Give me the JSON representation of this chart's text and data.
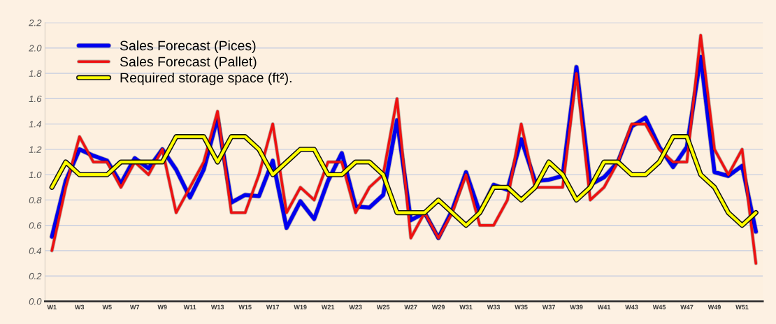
{
  "chart_data": {
    "type": "line",
    "categories": [
      "W1",
      null,
      "W3",
      null,
      "W5",
      null,
      "W7",
      null,
      "W9",
      null,
      "W11",
      null,
      "W13",
      null,
      "W15",
      null,
      "W17",
      null,
      "W19",
      null,
      "W21",
      null,
      "W23",
      null,
      "W25",
      null,
      "W27",
      null,
      "W29",
      null,
      "W31",
      null,
      "W33",
      null,
      "W35",
      null,
      "W37",
      null,
      "W39",
      null,
      "W41",
      null,
      "W43",
      null,
      "W45",
      null,
      "W47",
      null,
      "W49",
      null,
      "W51",
      null
    ],
    "series": [
      {
        "name": "Sales Forecast (Pices)",
        "color": "#0000ee",
        "values": [
          0.51,
          0.95,
          1.2,
          1.15,
          1.11,
          0.93,
          1.13,
          1.05,
          1.2,
          1.04,
          0.82,
          1.04,
          1.45,
          0.78,
          0.84,
          0.83,
          1.11,
          0.58,
          0.79,
          0.65,
          0.95,
          1.17,
          0.75,
          0.74,
          0.84,
          1.43,
          0.64,
          0.7,
          0.5,
          0.72,
          1.02,
          0.7,
          0.92,
          0.88,
          1.28,
          0.95,
          0.96,
          0.99,
          1.85,
          0.92,
          0.98,
          1.1,
          1.38,
          1.45,
          1.22,
          1.06,
          1.22,
          1.93,
          1.02,
          0.99,
          1.07,
          0.55
        ]
      },
      {
        "name": "Sales Forecast (Pallet)",
        "color": "#ee1111",
        "values": [
          0.4,
          0.9,
          1.3,
          1.1,
          1.1,
          0.9,
          1.1,
          1.0,
          1.2,
          0.7,
          0.9,
          1.1,
          1.5,
          0.7,
          0.7,
          1.0,
          1.4,
          0.7,
          0.9,
          0.8,
          1.1,
          1.1,
          0.7,
          0.9,
          1.0,
          1.6,
          0.5,
          0.7,
          0.5,
          0.7,
          1.0,
          0.6,
          0.6,
          0.8,
          1.4,
          0.9,
          0.9,
          0.9,
          1.8,
          0.8,
          0.9,
          1.1,
          1.4,
          1.4,
          1.2,
          1.1,
          1.1,
          2.1,
          1.2,
          1.0,
          1.2,
          0.3
        ]
      },
      {
        "name": "Required storage space (ft²).",
        "color": "#ffff00",
        "values": [
          0.9,
          1.1,
          1.0,
          1.0,
          1.0,
          1.1,
          1.1,
          1.1,
          1.1,
          1.3,
          1.3,
          1.3,
          1.1,
          1.3,
          1.3,
          1.2,
          1.0,
          1.1,
          1.2,
          1.2,
          1.0,
          1.0,
          1.1,
          1.1,
          1.0,
          0.7,
          0.7,
          0.7,
          0.8,
          0.7,
          0.6,
          0.7,
          0.9,
          0.9,
          0.8,
          0.9,
          1.1,
          1.0,
          0.8,
          0.9,
          1.1,
          1.1,
          1.0,
          1.0,
          1.1,
          1.3,
          1.3,
          1.0,
          0.9,
          0.7,
          0.6,
          0.7
        ]
      }
    ],
    "ylim": [
      0,
      2.2
    ],
    "yticks": [
      {
        "value": 0,
        "label": "0.0"
      },
      {
        "value": 0.2,
        "label": "0.2"
      },
      {
        "value": 0.4,
        "label": "0.4"
      },
      {
        "value": 0.6,
        "label": "0.6"
      },
      {
        "value": 0.8,
        "label": "0.8"
      },
      {
        "value": 1.0,
        "label": "1.0"
      },
      {
        "value": 1.2,
        "label": "1.2"
      },
      {
        "value": 1.4,
        "label": "1.4"
      },
      {
        "value": 1.6,
        "label": "1.6"
      },
      {
        "value": 1.8,
        "label": "1.8"
      },
      {
        "value": 2.0,
        "label": "2.0"
      },
      {
        "value": 2.2,
        "label": "2.2"
      }
    ],
    "grid": "y",
    "legend": "top left",
    "marker": "none",
    "line_style": "solid"
  }
}
